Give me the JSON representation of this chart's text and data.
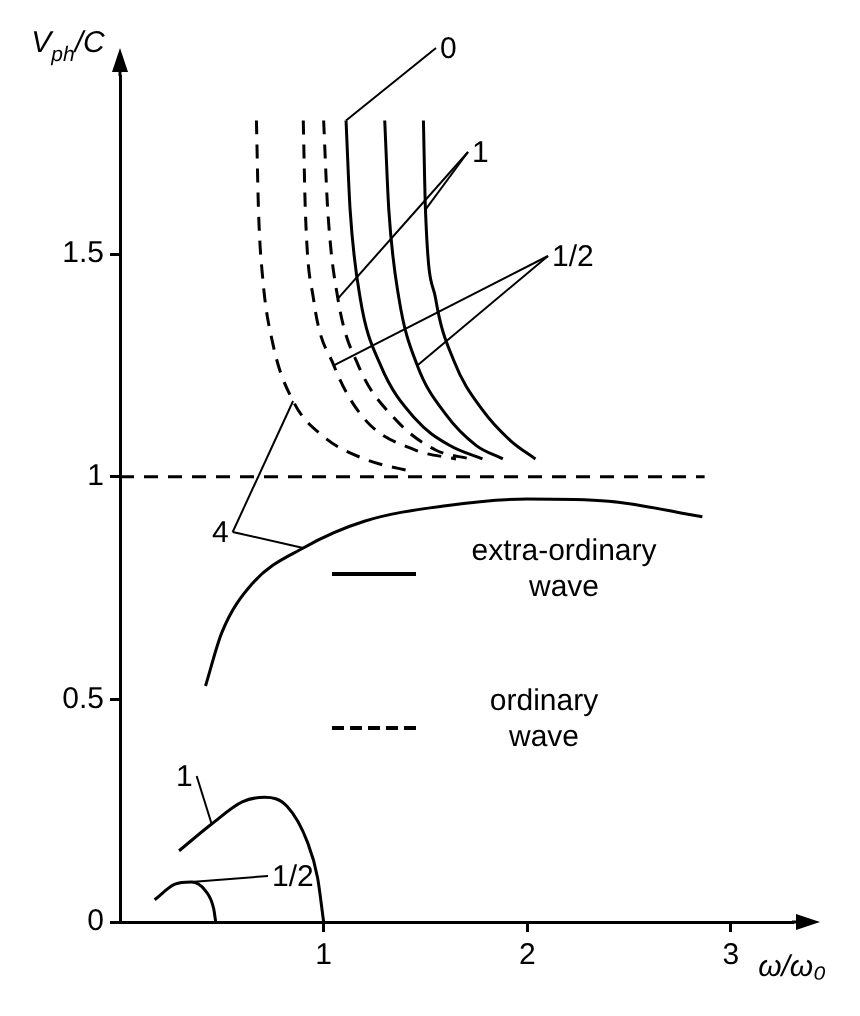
{
  "chart_data": {
    "type": "line",
    "xlabel": "ω/ω₀",
    "ylabel": "V$_{ph}$/C",
    "xlim": [
      0,
      3.3
    ],
    "ylim": [
      0,
      1.9
    ],
    "xticks": [
      1,
      2,
      3
    ],
    "yticks": [
      0,
      0.5,
      1,
      1.5
    ],
    "grid": false,
    "marker": "none",
    "series": [
      {
        "name": "4",
        "color": "#000000",
        "line_style": "dashed",
        "x": [
          0.67,
          0.68,
          0.7,
          0.75,
          0.85,
          1.0,
          1.2,
          1.45
        ],
        "values": [
          1.8,
          1.6,
          1.45,
          1.3,
          1.17,
          1.09,
          1.04,
          1.01
        ]
      },
      {
        "color": "#000000",
        "line_style": "dashed",
        "x": [
          0.9,
          0.91,
          0.95,
          1.05,
          1.2,
          1.45,
          1.65
        ],
        "values": [
          1.8,
          1.6,
          1.4,
          1.25,
          1.13,
          1.06,
          1.04
        ]
      },
      {
        "color": "#000000",
        "line_style": "dashed",
        "x": [
          1.0,
          1.02,
          1.07,
          1.17,
          1.35,
          1.55,
          1.72
        ],
        "values": [
          1.8,
          1.6,
          1.4,
          1.25,
          1.13,
          1.06,
          1.04
        ]
      },
      {
        "name": "0",
        "color": "#000000",
        "line_style": "solid",
        "x": [
          1.11,
          1.13,
          1.18,
          1.28,
          1.45,
          1.62,
          1.78
        ],
        "values": [
          1.8,
          1.6,
          1.4,
          1.25,
          1.13,
          1.07,
          1.04
        ]
      },
      {
        "name": "1/2",
        "color": "#000000",
        "line_style": "solid",
        "x": [
          1.3,
          1.32,
          1.37,
          1.46,
          1.6,
          1.75,
          1.88
        ],
        "values": [
          1.8,
          1.6,
          1.4,
          1.25,
          1.14,
          1.07,
          1.04
        ]
      },
      {
        "name": "1",
        "color": "#000000",
        "line_style": "solid",
        "x": [
          1.49,
          1.5,
          1.55,
          1.64,
          1.78,
          1.92,
          2.04
        ],
        "values": [
          1.8,
          1.6,
          1.4,
          1.26,
          1.15,
          1.08,
          1.04
        ]
      },
      {
        "color": "#000000",
        "line_style": "solid",
        "x": [
          0.42,
          0.5,
          0.65,
          0.9,
          1.2,
          1.6,
          2.0,
          2.4,
          2.86
        ],
        "values": [
          0.53,
          0.65,
          0.76,
          0.84,
          0.9,
          0.935,
          0.95,
          0.945,
          0.91
        ]
      },
      {
        "name": "1",
        "color": "#000000",
        "line_style": "solid",
        "x": [
          0.29,
          0.45,
          0.6,
          0.71,
          0.82,
          0.92,
          0.97,
          1.0
        ],
        "values": [
          0.16,
          0.22,
          0.27,
          0.28,
          0.26,
          0.18,
          0.1,
          0
        ]
      },
      {
        "name": "1/2",
        "color": "#000000",
        "line_style": "solid",
        "x": [
          0.17,
          0.27,
          0.35,
          0.42,
          0.46,
          0.47
        ],
        "values": [
          0.05,
          0.085,
          0.09,
          0.07,
          0.03,
          0
        ]
      }
    ],
    "ref_lines": [
      {
        "axis": "y",
        "value": 1,
        "line_style": "dashed",
        "color": "#000000"
      }
    ],
    "annotations": [
      "extra-ordinary\nwave",
      "ordinary\nwave"
    ]
  }
}
